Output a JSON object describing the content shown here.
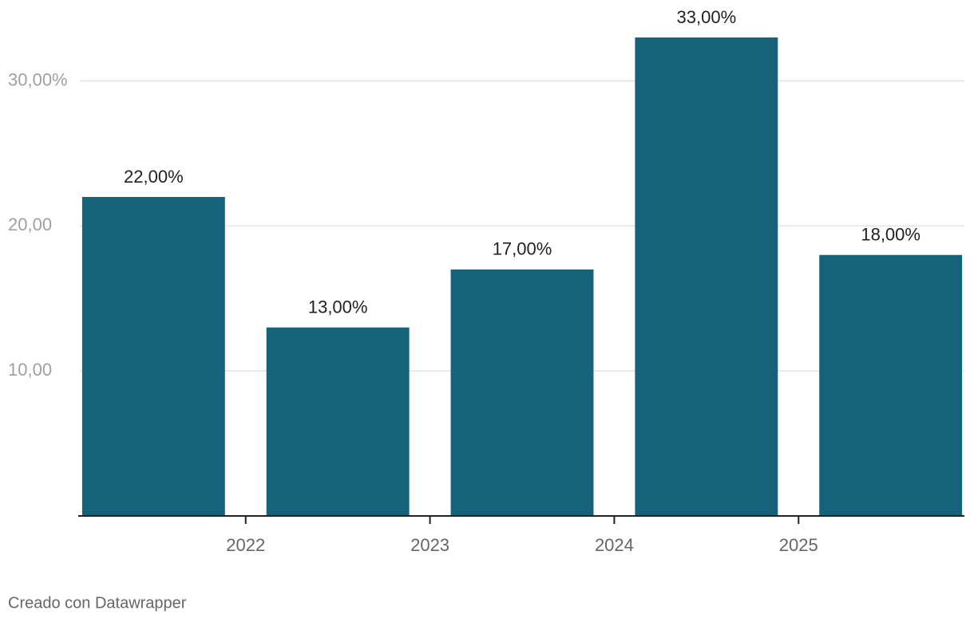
{
  "chart_data": {
    "type": "bar",
    "x": [
      2021.5,
      2022.5,
      2023.5,
      2024.5,
      2025.5
    ],
    "values": [
      22,
      13,
      17,
      33,
      18
    ],
    "value_labels": [
      "22,00%",
      "13,00%",
      "17,00%",
      "33,00%",
      "18,00%"
    ],
    "color": "#17627b",
    "xlim": [
      2021.1,
      2025.9
    ],
    "xticks": [
      2022,
      2023,
      2024,
      2025
    ],
    "ylim": [
      0,
      33
    ],
    "yticks": [
      {
        "value": 10,
        "label": "10,00"
      },
      {
        "value": 20,
        "label": "20,00"
      },
      {
        "value": 30,
        "label": "30,00%"
      }
    ],
    "grid": true,
    "credit": "Creado con Datawrapper"
  }
}
